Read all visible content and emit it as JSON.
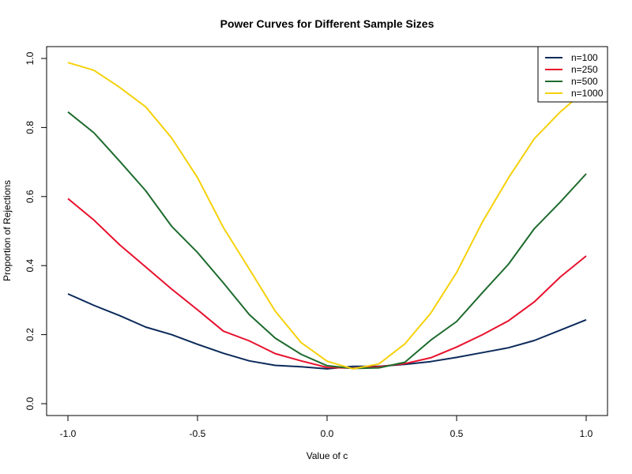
{
  "chart_data": {
    "type": "line",
    "title": "Power Curves for Different Sample Sizes",
    "xlabel": "Value of c",
    "ylabel": "Proportion of Rejections",
    "xlim": [
      -1.0,
      1.0
    ],
    "ylim": [
      0.0,
      1.0
    ],
    "x_ticks": [
      "-1.0",
      "-0.5",
      "0.0",
      "0.5",
      "1.0"
    ],
    "y_ticks": [
      "0.0",
      "0.2",
      "0.4",
      "0.6",
      "0.8",
      "1.0"
    ],
    "grid": false,
    "legend_position": "top-right",
    "x": [
      -1.0,
      -0.9,
      -0.8,
      -0.7,
      -0.6,
      -0.5,
      -0.4,
      -0.3,
      -0.2,
      -0.1,
      0.0,
      0.1,
      0.2,
      0.3,
      0.4,
      0.5,
      0.6,
      0.7,
      0.8,
      0.9,
      1.0
    ],
    "series": [
      {
        "name": "n=100",
        "color": "#0b2a5a",
        "values": [
          0.318,
          0.285,
          0.255,
          0.222,
          0.2,
          0.172,
          0.146,
          0.124,
          0.111,
          0.107,
          0.101,
          0.108,
          0.108,
          0.114,
          0.122,
          0.134,
          0.148,
          0.162,
          0.183,
          0.213,
          0.243
        ]
      },
      {
        "name": "n=250",
        "color": "#e8112d",
        "values": [
          0.594,
          0.532,
          0.46,
          0.396,
          0.332,
          0.272,
          0.21,
          0.182,
          0.145,
          0.124,
          0.105,
          0.103,
          0.107,
          0.116,
          0.133,
          0.164,
          0.2,
          0.24,
          0.295,
          0.367,
          0.428
        ]
      },
      {
        "name": "n=500",
        "color": "#1e6b2e",
        "values": [
          0.845,
          0.785,
          0.702,
          0.617,
          0.514,
          0.438,
          0.35,
          0.258,
          0.19,
          0.143,
          0.11,
          0.102,
          0.104,
          0.12,
          0.184,
          0.238,
          0.322,
          0.404,
          0.507,
          0.584,
          0.666
        ]
      },
      {
        "name": "n=1000",
        "color": "#f5d10a",
        "values": [
          0.988,
          0.966,
          0.916,
          0.86,
          0.77,
          0.655,
          0.51,
          0.39,
          0.268,
          0.177,
          0.123,
          0.101,
          0.115,
          0.173,
          0.262,
          0.38,
          0.527,
          0.654,
          0.768,
          0.845,
          0.91
        ]
      }
    ]
  }
}
